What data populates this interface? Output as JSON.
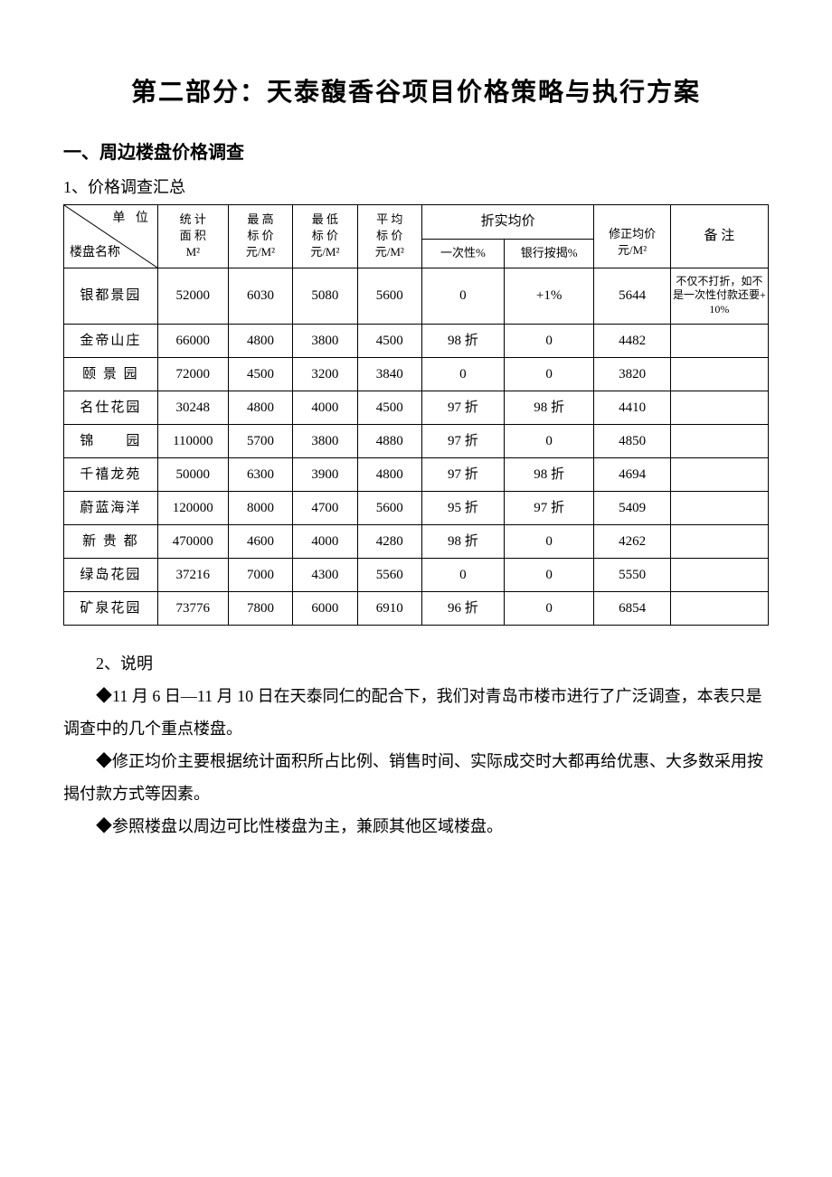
{
  "title": "第二部分：天泰馥香谷项目价格策略与执行方案",
  "section1": {
    "heading": "一、周边楼盘价格调查",
    "sub1": "1、价格调查汇总"
  },
  "table": {
    "header": {
      "diag_top": "单 位",
      "diag_bottom": "楼盘名称",
      "area_l1": "统 计",
      "area_l2": "面 积",
      "area_l3": "M²",
      "high_l1": "最 高",
      "high_l2": "标 价",
      "high_l3": "元/M²",
      "low_l1": "最 低",
      "low_l2": "标 价",
      "low_l3": "元/M²",
      "avg_l1": "平 均",
      "avg_l2": "标 价",
      "avg_l3": "元/M²",
      "disc": "折实均价",
      "disc_once": "一次性%",
      "disc_mort": "银行按揭%",
      "adj_l1": "修正均价",
      "adj_l2": "元/M²",
      "note": "备  注"
    },
    "rows": [
      {
        "name": "银都景园",
        "area": "52000",
        "high": "6030",
        "low": "5080",
        "avg": "5600",
        "once": "0",
        "mort": "+1%",
        "adj": "5644",
        "note": "不仅不打折，如不是一次性付款还要+10%"
      },
      {
        "name": "金帝山庄",
        "area": "66000",
        "high": "4800",
        "low": "3800",
        "avg": "4500",
        "once": "98 折",
        "mort": "0",
        "adj": "4482",
        "note": ""
      },
      {
        "name": "颐 景 园",
        "area": "72000",
        "high": "4500",
        "low": "3200",
        "avg": "3840",
        "once": "0",
        "mort": "0",
        "adj": "3820",
        "note": ""
      },
      {
        "name": "名仕花园",
        "area": "30248",
        "high": "4800",
        "low": "4000",
        "avg": "4500",
        "once": "97 折",
        "mort": "98 折",
        "adj": "4410",
        "note": ""
      },
      {
        "name": "锦　　园",
        "area": "110000",
        "high": "5700",
        "low": "3800",
        "avg": "4880",
        "once": "97 折",
        "mort": "0",
        "adj": "4850",
        "note": ""
      },
      {
        "name": "千禧龙苑",
        "area": "50000",
        "high": "6300",
        "low": "3900",
        "avg": "4800",
        "once": "97 折",
        "mort": "98 折",
        "adj": "4694",
        "note": ""
      },
      {
        "name": "蔚蓝海洋",
        "area": "120000",
        "high": "8000",
        "low": "4700",
        "avg": "5600",
        "once": "95 折",
        "mort": "97 折",
        "adj": "5409",
        "note": ""
      },
      {
        "name": "新 贵 都",
        "area": "470000",
        "high": "4600",
        "low": "4000",
        "avg": "4280",
        "once": "98 折",
        "mort": "0",
        "adj": "4262",
        "note": ""
      },
      {
        "name": "绿岛花园",
        "area": "37216",
        "high": "7000",
        "low": "4300",
        "avg": "5560",
        "once": "0",
        "mort": "0",
        "adj": "5550",
        "note": ""
      },
      {
        "name": "矿泉花园",
        "area": "73776",
        "high": "7800",
        "low": "6000",
        "avg": "6910",
        "once": "96 折",
        "mort": "0",
        "adj": "6854",
        "note": ""
      }
    ]
  },
  "explain": {
    "heading": "2、说明",
    "p1": "◆11 月 6 日—11 月 10 日在天泰同仁的配合下，我们对青岛市楼市进行了广泛调查，本表只是调查中的几个重点楼盘。",
    "p2": "◆修正均价主要根据统计面积所占比例、销售时间、实际成交时大都再给优惠、大多数采用按揭付款方式等因素。",
    "p3": "◆参照楼盘以周边可比性楼盘为主，兼顾其他区域楼盘。"
  }
}
